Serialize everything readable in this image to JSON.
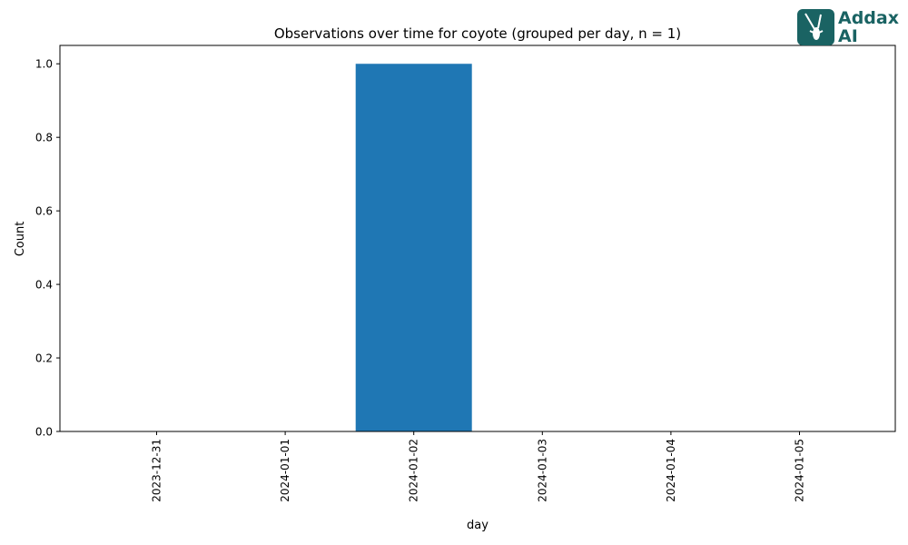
{
  "chart_data": {
    "type": "bar",
    "title": "Observations over time for coyote (grouped per day, n = 1)",
    "xlabel": "day",
    "ylabel": "Count",
    "categories": [
      "2023-12-31",
      "2024-01-01",
      "2024-01-02",
      "2024-01-03",
      "2024-01-04",
      "2024-01-05"
    ],
    "values": [
      0,
      0,
      1,
      0,
      0,
      0
    ],
    "ylim": [
      0,
      1.05
    ],
    "yticks": [
      "0.0",
      "0.2",
      "0.4",
      "0.6",
      "0.8",
      "1.0"
    ],
    "bar_color": "#1f77b4",
    "grid": false,
    "legend": "none"
  },
  "logo": {
    "line1": "Addax",
    "line2": "AI",
    "color": "#1a6363",
    "icon": "addax-antelope-icon"
  }
}
